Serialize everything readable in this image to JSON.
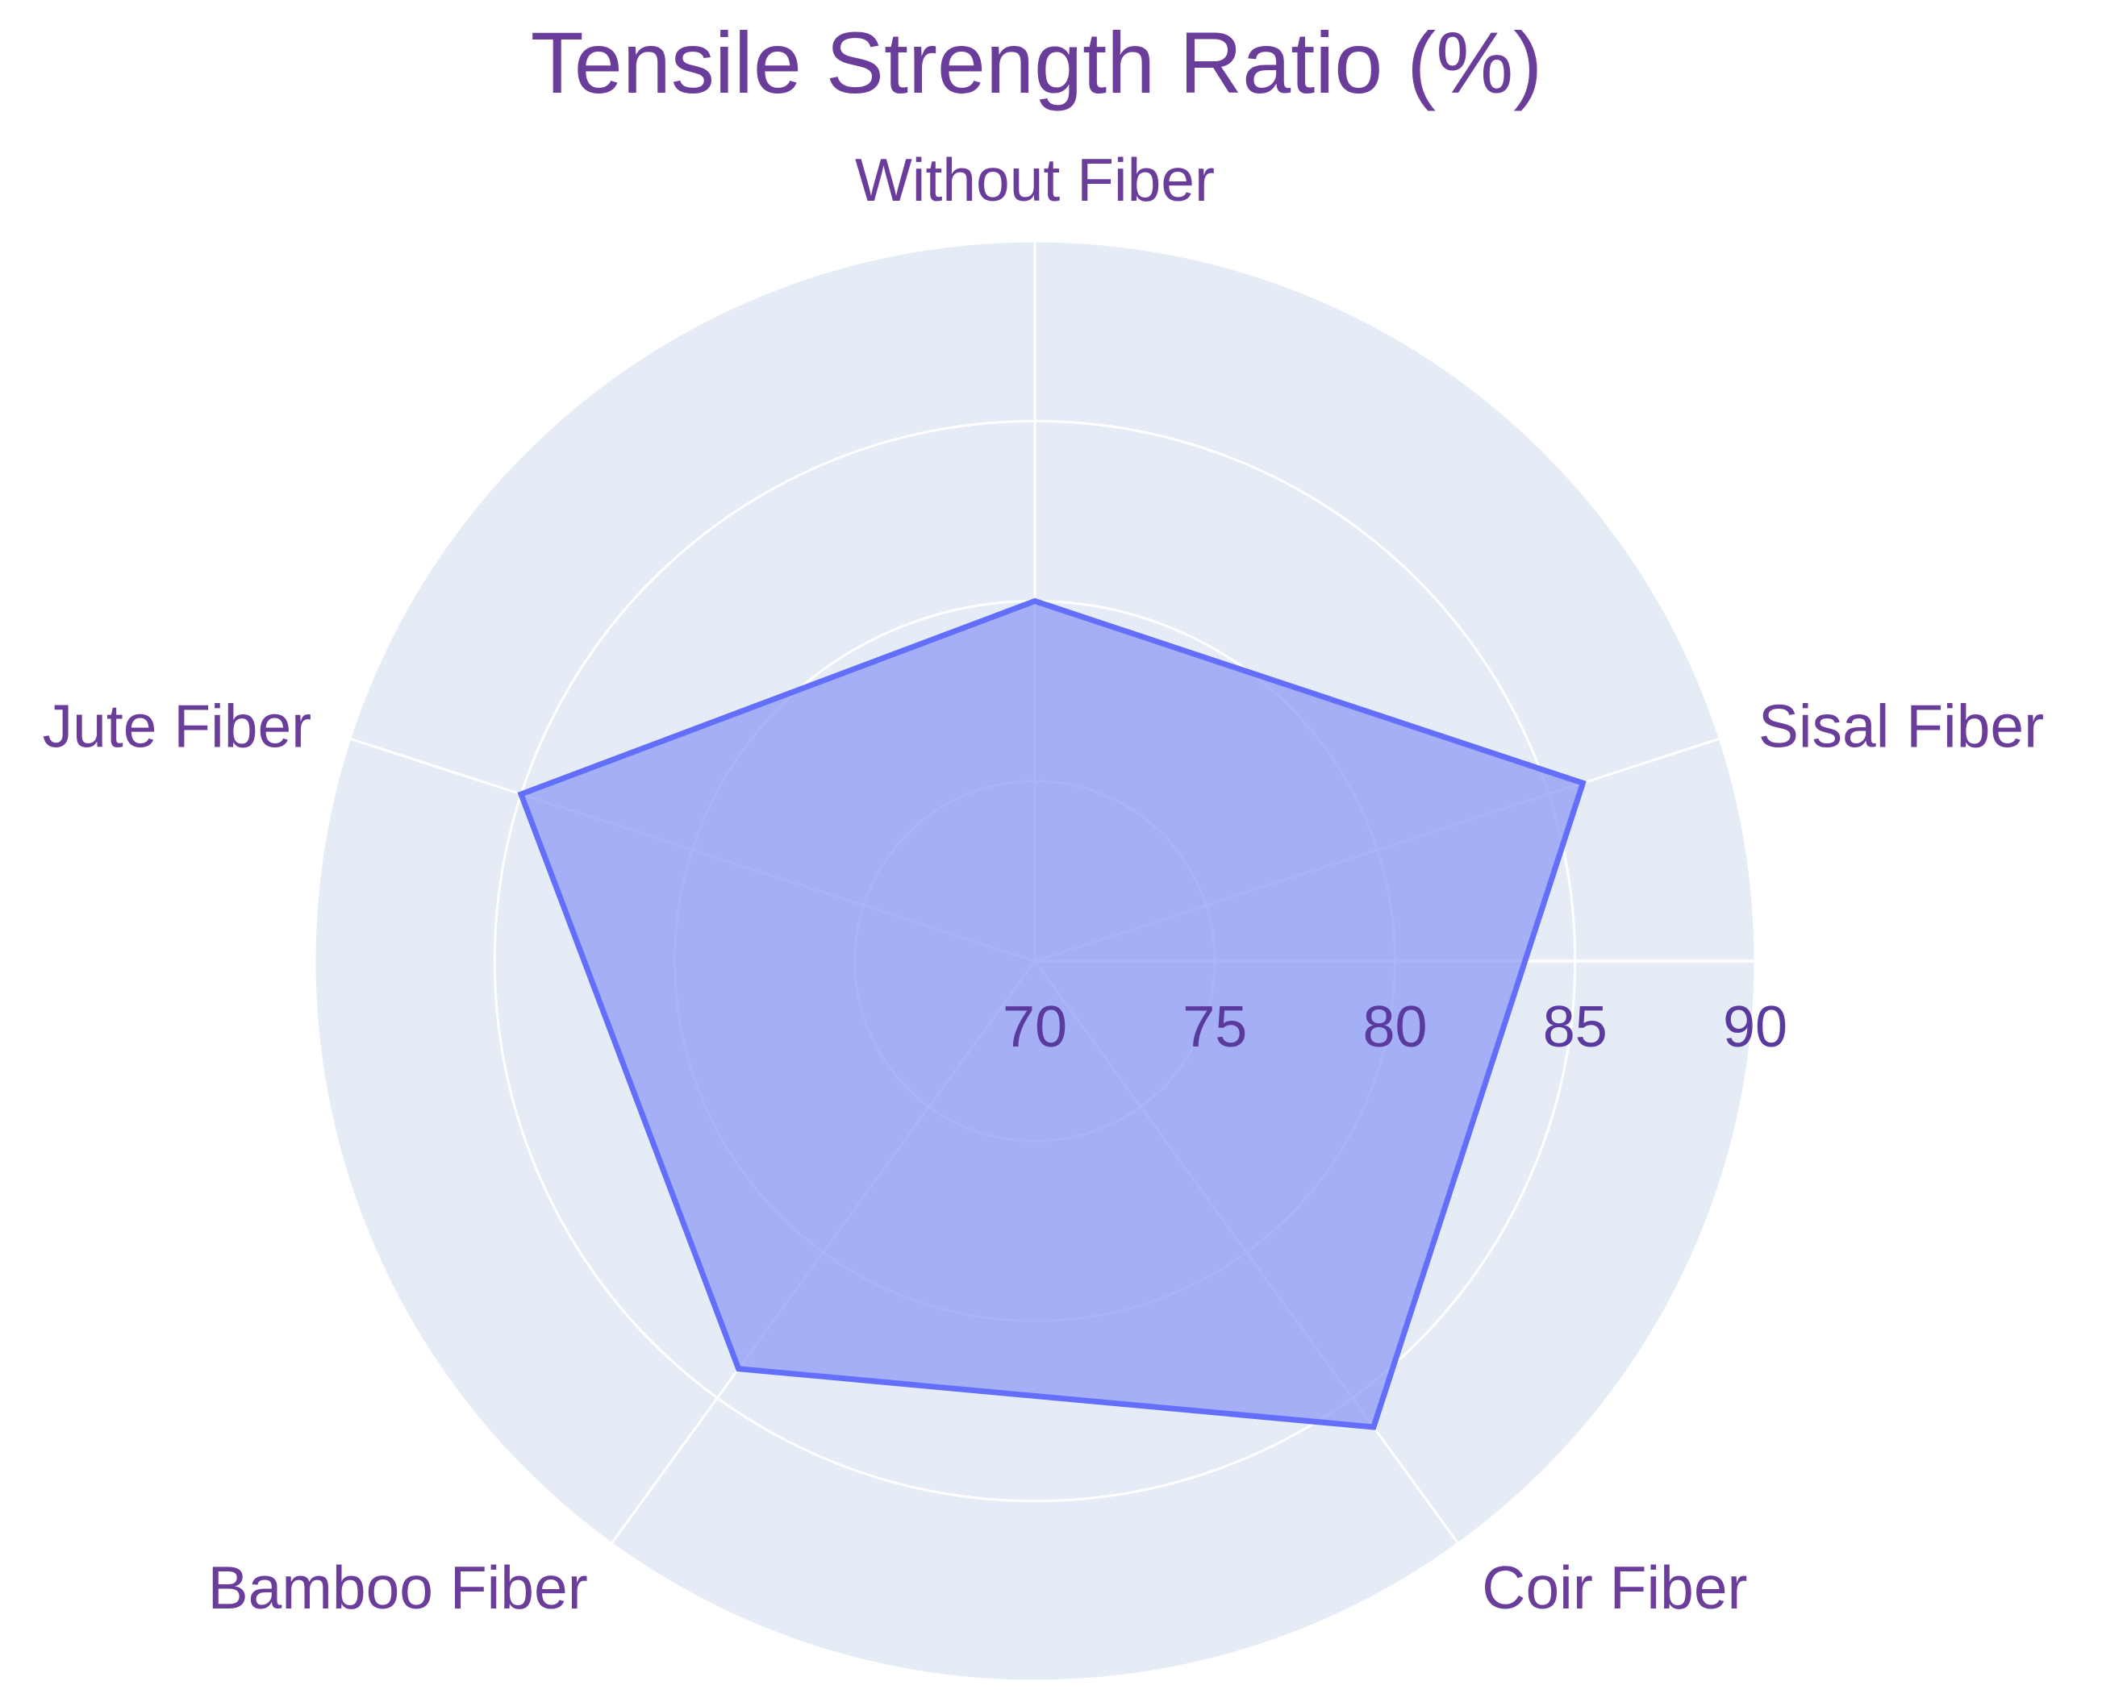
{
  "chart_data": {
    "type": "radar",
    "title": "Tensile Strength Ratio (%)",
    "categories": [
      "Without Fiber",
      "Sisal Fiber",
      "Coir Fiber",
      "Bamboo Fiber",
      "Jute Fiber"
    ],
    "series": [
      {
        "values": [
          80,
          86,
          86,
          84,
          85
        ]
      }
    ],
    "radial_range": [
      70,
      90
    ],
    "radial_ticks": [
      "70",
      "75",
      "80",
      "85",
      "90"
    ],
    "grid": true,
    "colors": {
      "polar_background": "#e5ecf6",
      "grid": "#ffffff",
      "fill": "#8d9bf4",
      "line": "#636efa",
      "text": "#6a3d9a"
    }
  }
}
